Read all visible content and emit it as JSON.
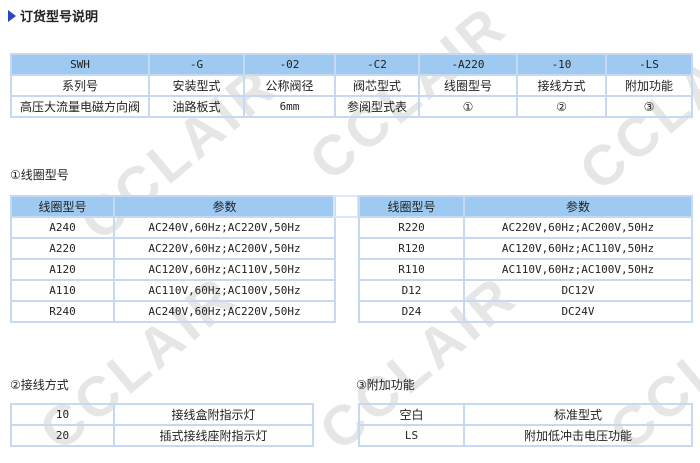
{
  "title": "订货型号说明",
  "order_table": {
    "codes": [
      "SWH",
      "-G",
      "-02",
      "-C2",
      "-A220",
      "-10",
      "-LS"
    ],
    "names": [
      "系列号",
      "安装型式",
      "公称阀径",
      "阀芯型式",
      "线圈型号",
      "接线方式",
      "附加功能"
    ],
    "values": [
      "高压大流量电磁方向阀",
      "油路板式",
      "6mm",
      "参阅型式表",
      "①",
      "②",
      "③"
    ]
  },
  "coil": {
    "label": "①线圈型号",
    "headers": [
      "线圈型号",
      "参数"
    ],
    "left_rows": [
      [
        "A240",
        "AC240V,60Hz;AC220V,50Hz"
      ],
      [
        "A220",
        "AC220V,60Hz;AC200V,50Hz"
      ],
      [
        "A120",
        "AC120V,60Hz;AC110V,50Hz"
      ],
      [
        "A110",
        "AC110V,60Hz;AC100V,50Hz"
      ],
      [
        "R240",
        "AC240V,60Hz;AC220V,50Hz"
      ]
    ],
    "right_rows": [
      [
        "R220",
        "AC220V,60Hz;AC200V,50Hz"
      ],
      [
        "R120",
        "AC120V,60Hz;AC110V,50Hz"
      ],
      [
        "R110",
        "AC110V,60Hz;AC100V,50Hz"
      ],
      [
        "D12",
        "DC12V"
      ],
      [
        "D24",
        "DC24V"
      ]
    ]
  },
  "wiring": {
    "label": "②接线方式",
    "rows": [
      [
        "10",
        "接线盒附指示灯"
      ],
      [
        "20",
        "插式接线座附指示灯"
      ]
    ]
  },
  "extra": {
    "label": "③附加功能",
    "rows": [
      [
        "空白",
        "标准型式"
      ],
      [
        "LS",
        "附加低冲击电压功能"
      ]
    ]
  },
  "watermark": "CCLAIR",
  "colors": {
    "header_bg": "#9ec9f0",
    "border": "#c5daf2",
    "bullet": "#2a44c8"
  }
}
